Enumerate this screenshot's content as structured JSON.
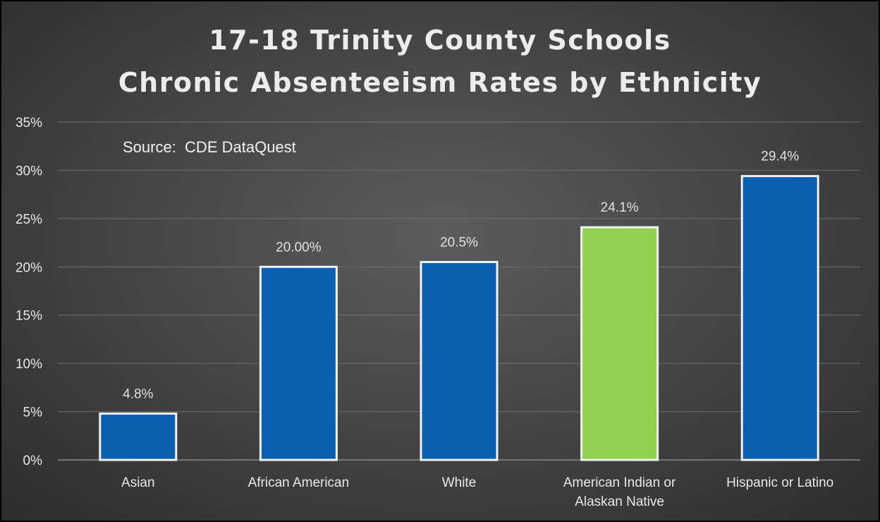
{
  "title_line1": "17-18 Trinity County Schools",
  "title_line2": "Chronic Absenteeism Rates by Ethnicity",
  "source": "Source:  CDE DataQuest",
  "colors": {
    "bar_default": "#0b5fb0",
    "bar_highlight": "#92d050",
    "bar_outline": "#f2f2f2",
    "gridline": "#6e6e6e",
    "background": "#4a4a4a"
  },
  "chart_data": {
    "type": "bar",
    "title": "17-18 Trinity County Schools Chronic Absenteeism Rates by Ethnicity",
    "xlabel": "",
    "ylabel": "",
    "ylim": [
      0,
      35
    ],
    "yticks": [
      0,
      5,
      10,
      15,
      20,
      25,
      30,
      35
    ],
    "ytick_labels": [
      "0%",
      "5%",
      "10%",
      "15%",
      "20%",
      "25%",
      "30%",
      "35%"
    ],
    "grid": true,
    "legend": "none",
    "categories": [
      [
        "Asian"
      ],
      [
        "African American"
      ],
      [
        "White"
      ],
      [
        "American Indian or",
        "Alaskan Native"
      ],
      [
        "Hispanic or Latino"
      ]
    ],
    "values": [
      4.8,
      20.0,
      20.5,
      24.1,
      29.4
    ],
    "data_labels": [
      "4.8%",
      "20.00%",
      "20.5%",
      "24.1%",
      "29.4%"
    ],
    "highlight_index": 3
  }
}
